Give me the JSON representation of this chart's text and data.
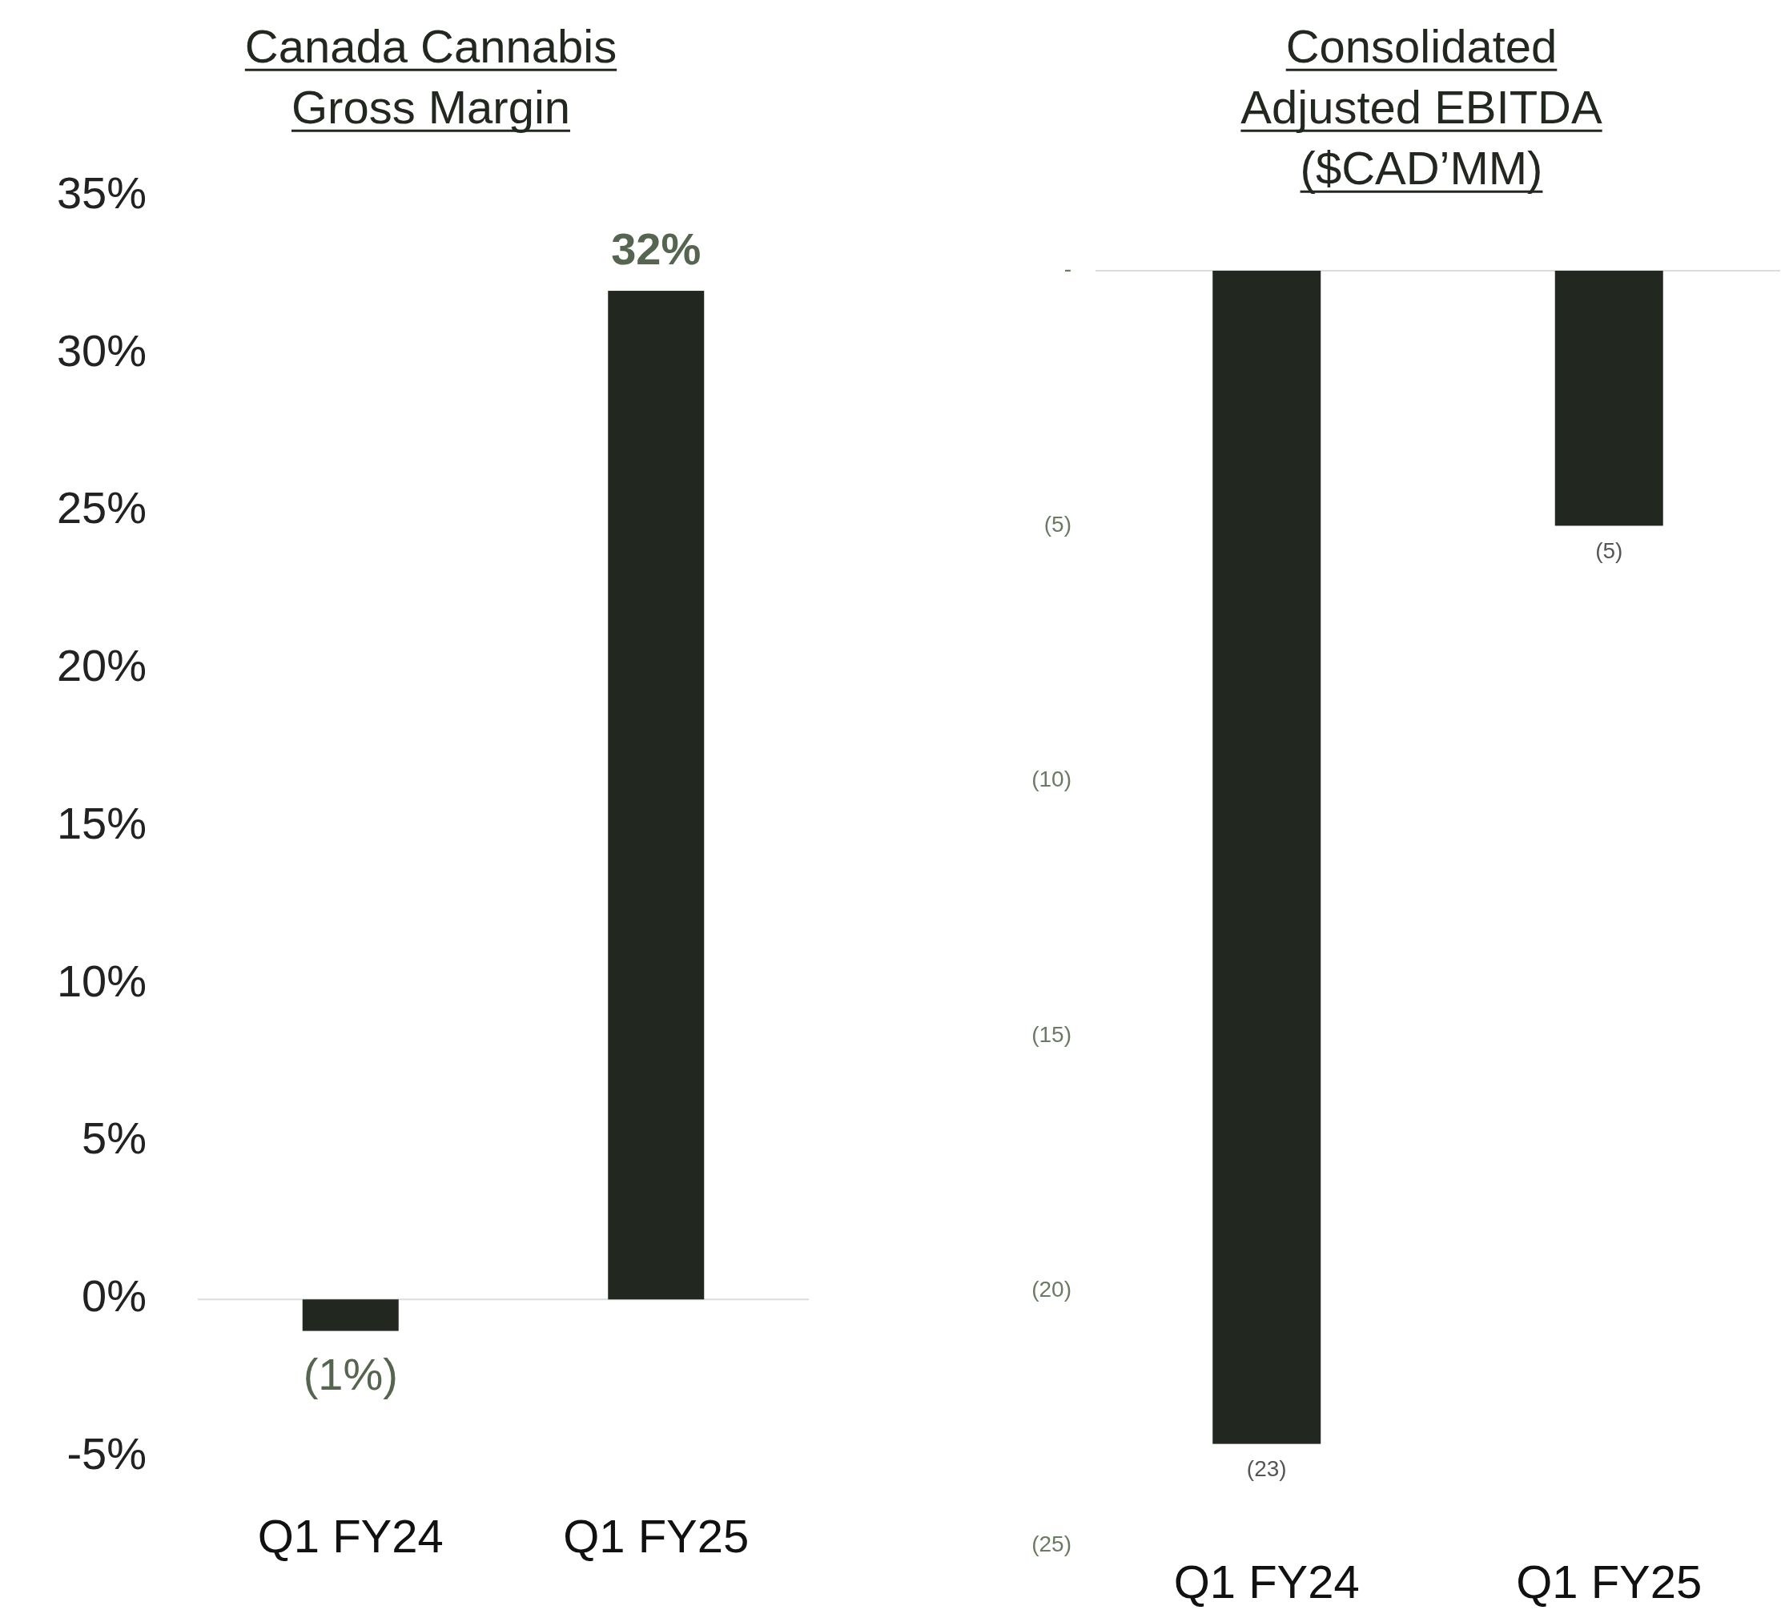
{
  "chart_data": [
    {
      "type": "bar",
      "title": "Canada Cannabis Gross Margin",
      "categories": [
        "Q1 FY24",
        "Q1 FY25"
      ],
      "values": [
        -1,
        32
      ],
      "value_labels": [
        "(1%)",
        "32%"
      ],
      "color": "#222820",
      "ylim": [
        -5,
        35
      ],
      "yticks": [
        {
          "value": -5,
          "label": "-5%"
        },
        {
          "value": 0,
          "label": "0%"
        },
        {
          "value": 5,
          "label": "5%"
        },
        {
          "value": 10,
          "label": "10%"
        },
        {
          "value": 15,
          "label": "15%"
        },
        {
          "value": 20,
          "label": "20%"
        },
        {
          "value": 25,
          "label": "25%"
        },
        {
          "value": 30,
          "label": "30%"
        },
        {
          "value": 35,
          "label": "35%"
        }
      ]
    },
    {
      "type": "bar",
      "title": "Consolidated Adjusted EBITDA ($CAD’MM)",
      "categories": [
        "Q1 FY24",
        "Q1 FY25"
      ],
      "values": [
        -23,
        -5
      ],
      "value_labels": [
        "(23)",
        "(5)"
      ],
      "color": "#222820",
      "ylim": [
        -25,
        0
      ],
      "yticks": [
        {
          "value": -25,
          "label": "(25)"
        },
        {
          "value": -20,
          "label": "(20)"
        },
        {
          "value": -15,
          "label": "(15)"
        },
        {
          "value": -10,
          "label": "(10)"
        },
        {
          "value": -5,
          "label": "(5)"
        },
        {
          "value": 0,
          "label": "-"
        }
      ]
    }
  ]
}
